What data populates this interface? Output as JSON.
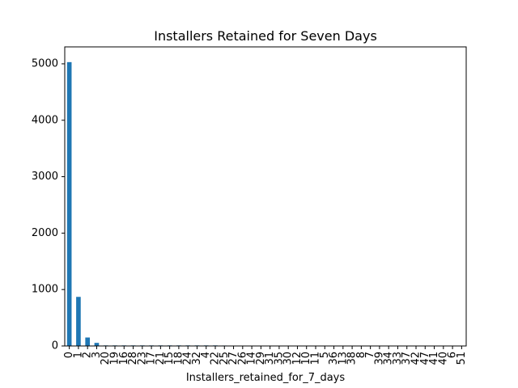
{
  "chart_data": {
    "type": "bar",
    "title": "Installers Retained for Seven Days",
    "xlabel": "Installers_retained_for_7_days",
    "ylabel": "",
    "ylim": [
      0,
      5300
    ],
    "yticks": [
      0,
      1000,
      2000,
      3000,
      4000,
      5000
    ],
    "grid": false,
    "legend": "none",
    "bar_color": "#1f77b4",
    "categories": [
      "0",
      "1",
      "2",
      "3",
      "20",
      "19",
      "16",
      "28",
      "23",
      "17",
      "21",
      "15",
      "18",
      "24",
      "32",
      "4",
      "22",
      "25",
      "27",
      "26",
      "14",
      "29",
      "31",
      "35",
      "30",
      "12",
      "10",
      "11",
      "5",
      "36",
      "13",
      "38",
      "8",
      "7",
      "39",
      "34",
      "33",
      "37",
      "42",
      "47",
      "41",
      "40",
      "6",
      "51"
    ],
    "values": [
      5030,
      870,
      150,
      55,
      10,
      10,
      10,
      10,
      10,
      10,
      10,
      10,
      10,
      10,
      10,
      10,
      10,
      8,
      6,
      5,
      5,
      5,
      4,
      4,
      4,
      3,
      3,
      3,
      3,
      3,
      3,
      2,
      2,
      2,
      2,
      2,
      2,
      2,
      1,
      1,
      1,
      1,
      1,
      1
    ]
  }
}
